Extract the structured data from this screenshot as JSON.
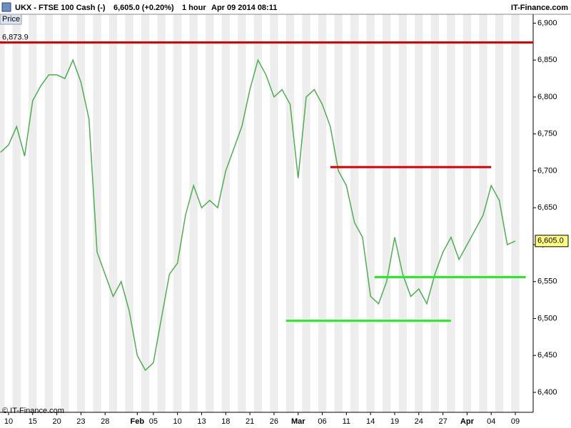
{
  "chart_data": {
    "type": "line",
    "header": {
      "instrument": "UKX - FTSE 100 Cash (-)",
      "quote": "6,605.0 (+0.20%)",
      "interval": "1 hour",
      "timestamp": "Apr 09 2014 08:11",
      "brand": "IT-Finance.com"
    },
    "y_label": "Price",
    "copyright": "© IT-Finance.com",
    "categories": [
      null,
      "10",
      null,
      null,
      "15",
      null,
      null,
      "20",
      null,
      null,
      "23",
      null,
      null,
      "28",
      null,
      null,
      null,
      "Feb",
      null,
      "05",
      null,
      null,
      "10",
      null,
      null,
      "13",
      null,
      null,
      "18",
      null,
      null,
      "21",
      null,
      null,
      "26",
      null,
      null,
      "Mar",
      null,
      null,
      "06",
      null,
      null,
      "11",
      null,
      null,
      "14",
      null,
      null,
      "19",
      null,
      null,
      "24",
      null,
      null,
      "27",
      null,
      null,
      "Apr",
      null,
      null,
      "04",
      null,
      null,
      "09"
    ],
    "series": [
      {
        "name": "Price",
        "color": "#4caf50",
        "values": [
          6725,
          6735,
          6760,
          6720,
          6795,
          6815,
          6830,
          6830,
          6825,
          6850,
          6820,
          6770,
          6590,
          6560,
          6530,
          6550,
          6510,
          6450,
          6430,
          6440,
          6500,
          6560,
          6575,
          6640,
          6680,
          6650,
          6660,
          6650,
          6700,
          6730,
          6760,
          6810,
          6850,
          6830,
          6800,
          6810,
          6790,
          6690,
          6800,
          6810,
          6790,
          6760,
          6700,
          6680,
          6630,
          6610,
          6530,
          6520,
          6550,
          6610,
          6560,
          6530,
          6540,
          6520,
          6560,
          6590,
          6610,
          6580,
          6600,
          6620,
          6640,
          6680,
          6660,
          6600,
          6605
        ]
      }
    ],
    "last_price": {
      "value": 6605.0,
      "label": "6,605.0"
    },
    "levels": [
      {
        "value": 6873.9,
        "label": "6,873.9",
        "color": "#e00000"
      },
      {
        "value": 6705,
        "color": "#e00000"
      },
      {
        "value": 6556,
        "color": "#22ee22"
      },
      {
        "value": 6497,
        "color": "#22ee22"
      }
    ],
    "ylim": [
      6373,
      6912
    ],
    "yticks": [
      {
        "value": 6400,
        "label": "6,400"
      },
      {
        "value": 6450,
        "label": "6,450"
      },
      {
        "value": 6500,
        "label": "6,500"
      },
      {
        "value": 6550,
        "label": "6,550"
      },
      {
        "value": 6600,
        "label": "6,600"
      },
      {
        "value": 6650,
        "label": "6,650"
      },
      {
        "value": 6700,
        "label": "6,700"
      },
      {
        "value": 6750,
        "label": "6,750"
      },
      {
        "value": 6800,
        "label": "6,800"
      },
      {
        "value": 6850,
        "label": "6,850"
      },
      {
        "value": 6900,
        "label": "6,900"
      }
    ],
    "grid": false
  }
}
